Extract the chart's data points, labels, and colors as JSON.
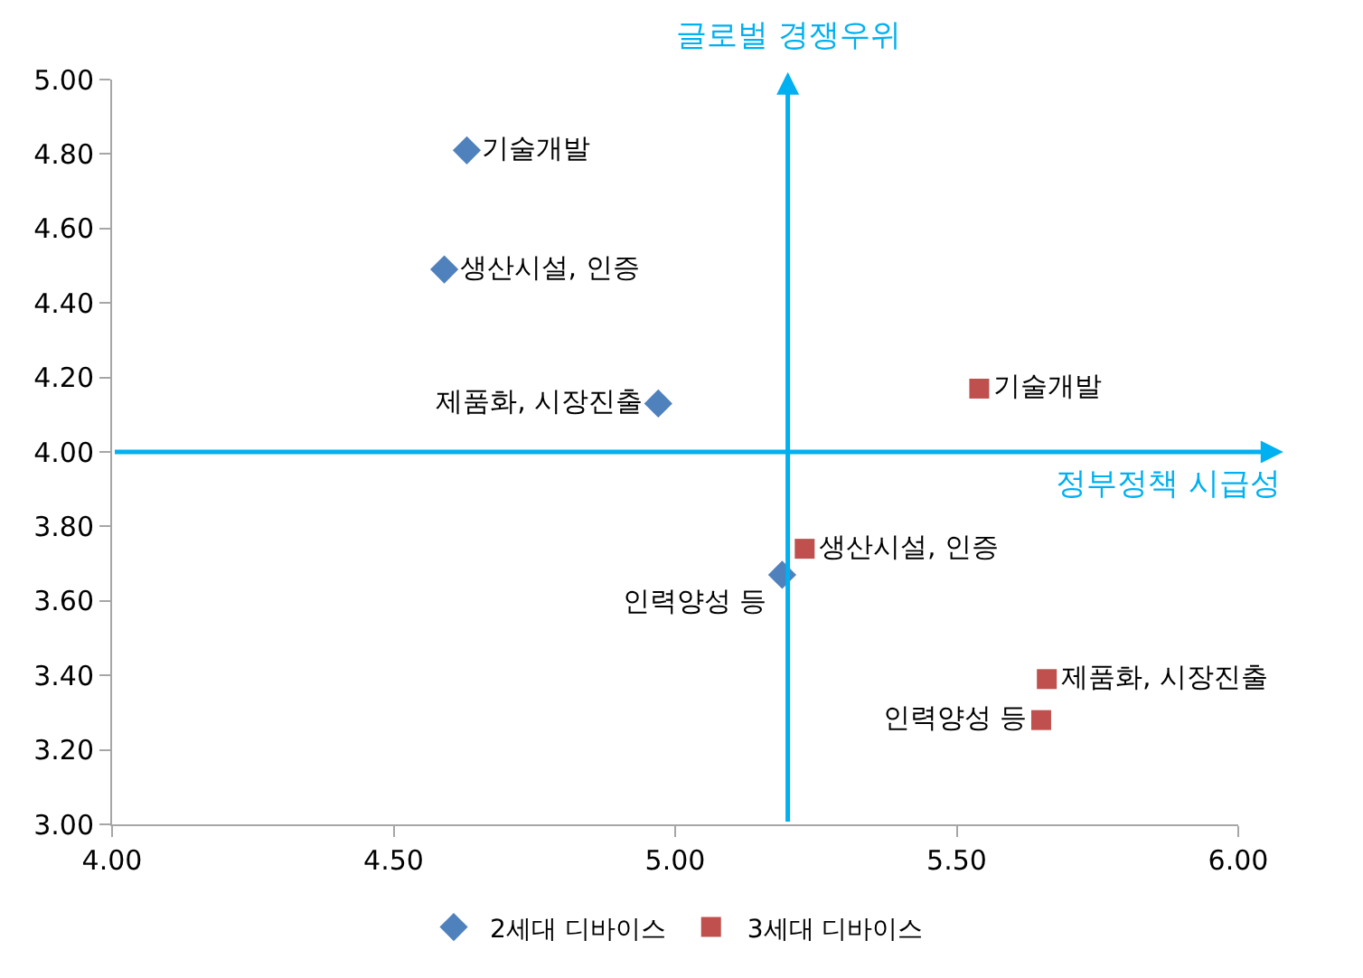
{
  "chart_data": {
    "type": "scatter",
    "series": [
      {
        "name": "2세대 디바이스",
        "color": "#4f81bd",
        "marker": "diamond",
        "x": [
          4.63,
          4.59,
          4.97,
          5.19
        ],
        "values": [
          4.81,
          4.49,
          4.13,
          3.67
        ],
        "value_labels": [
          "기술개발",
          "생산시설, 인증",
          "제품화, 시장진출",
          "인력양성 등"
        ]
      },
      {
        "name": "3세대 디바이스",
        "color": "#c0504d",
        "marker": "square",
        "x": [
          5.54,
          5.23,
          5.66,
          5.65
        ],
        "values": [
          4.17,
          3.74,
          3.39,
          3.28
        ],
        "value_labels": [
          "기술개발",
          "생산시설, 인증",
          "제품화, 시장진출",
          "인력양성 등"
        ]
      }
    ],
    "xlim": [
      4.0,
      6.0
    ],
    "xticks": [
      {
        "value": 4,
        "label": "4.00"
      },
      {
        "value": 4.5,
        "label": "4.50"
      },
      {
        "value": 5,
        "label": "5.00"
      },
      {
        "value": 5.5,
        "label": "5.50"
      },
      {
        "value": 6,
        "label": "6.00"
      }
    ],
    "ylim": [
      3.0,
      5.0
    ],
    "yticks": [
      {
        "value": 3,
        "label": "3.00"
      },
      {
        "value": 3.2,
        "label": "3.20"
      },
      {
        "value": 3.4,
        "label": "3.40"
      },
      {
        "value": 3.6,
        "label": "3.60"
      },
      {
        "value": 3.8,
        "label": "3.80"
      },
      {
        "value": 4,
        "label": "4.00"
      },
      {
        "value": 4.2,
        "label": "4.20"
      },
      {
        "value": 4.4,
        "label": "4.40"
      },
      {
        "value": 4.6,
        "label": "4.60"
      },
      {
        "value": 4.8,
        "label": "4.80"
      },
      {
        "value": 5,
        "label": "5.00"
      }
    ],
    "ref_lines": [
      {
        "axis": "x",
        "value": 5.2,
        "label": "글로벌 경쟁우위",
        "color": "#00b0f0"
      },
      {
        "axis": "y",
        "value": 4.0,
        "label": "정부정책 시급성",
        "color": "#00b0f0"
      }
    ],
    "legend": "bottom"
  }
}
